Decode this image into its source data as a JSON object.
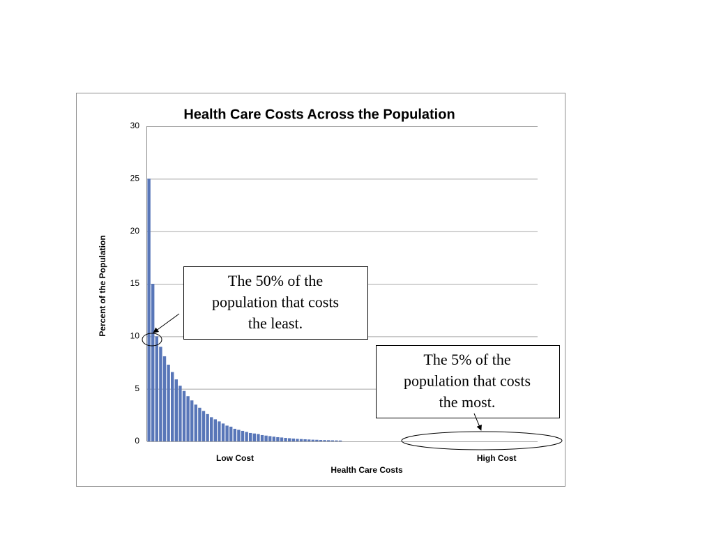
{
  "chart_data": {
    "type": "bar",
    "title": "Health Care Costs Across the Population",
    "x_label": "Health Care Costs",
    "y_label": "Percent of the Population",
    "categories": [
      null,
      null,
      null,
      null,
      null,
      null,
      null,
      null,
      null,
      null,
      null,
      null,
      null,
      null,
      null,
      null,
      null,
      null,
      null,
      null,
      null,
      null,
      "Low Cost",
      null,
      null,
      null,
      null,
      null,
      null,
      null,
      null,
      null,
      null,
      null,
      null,
      null,
      null,
      null,
      null,
      null,
      null,
      null,
      null,
      null,
      null,
      null,
      null,
      null,
      null,
      null,
      null,
      null,
      null,
      null,
      null,
      null,
      null,
      null,
      null,
      null,
      null,
      null,
      null,
      null,
      null,
      null,
      null,
      null,
      null,
      null,
      null,
      null,
      null,
      null,
      null,
      null,
      null,
      null,
      null,
      null,
      null,
      null,
      null,
      null,
      null,
      null,
      null,
      null,
      null,
      "High Cost",
      null,
      null,
      null,
      null,
      null,
      null,
      null,
      null,
      null,
      null
    ],
    "values": [
      25,
      15,
      10,
      9,
      8.1,
      7.3,
      6.6,
      5.9,
      5.3,
      4.8,
      4.3,
      3.9,
      3.5,
      3.2,
      2.9,
      2.6,
      2.3,
      2.1,
      1.9,
      1.7,
      1.5,
      1.4,
      1.2,
      1.1,
      1.0,
      0.9,
      0.8,
      0.75,
      0.7,
      0.6,
      0.55,
      0.5,
      0.45,
      0.4,
      0.37,
      0.33,
      0.3,
      0.27,
      0.24,
      0.22,
      0.2,
      0.18,
      0.16,
      0.15,
      0.13,
      0.12,
      0.11,
      0.1,
      0.09,
      0.08,
      0,
      0,
      0,
      0,
      0,
      0,
      0,
      0,
      0,
      0,
      0,
      0,
      0,
      0,
      0,
      0,
      0,
      0,
      0,
      0,
      0,
      0,
      0,
      0,
      0,
      0,
      0,
      0,
      0,
      0,
      0,
      0,
      0,
      0,
      0,
      0,
      0,
      0,
      0,
      0,
      0,
      0,
      0,
      0,
      0,
      0,
      0,
      0,
      0,
      0
    ],
    "color": "#5876b8",
    "ylim": [
      0,
      30
    ],
    "yticks": [
      0,
      5,
      10,
      15,
      20,
      25,
      30
    ],
    "grid": true,
    "annotations": [
      {
        "text": [
          "The 50% of the",
          "population that costs",
          "the least."
        ]
      },
      {
        "text": [
          "The 5% of the",
          "population that costs",
          "the most."
        ]
      }
    ]
  }
}
